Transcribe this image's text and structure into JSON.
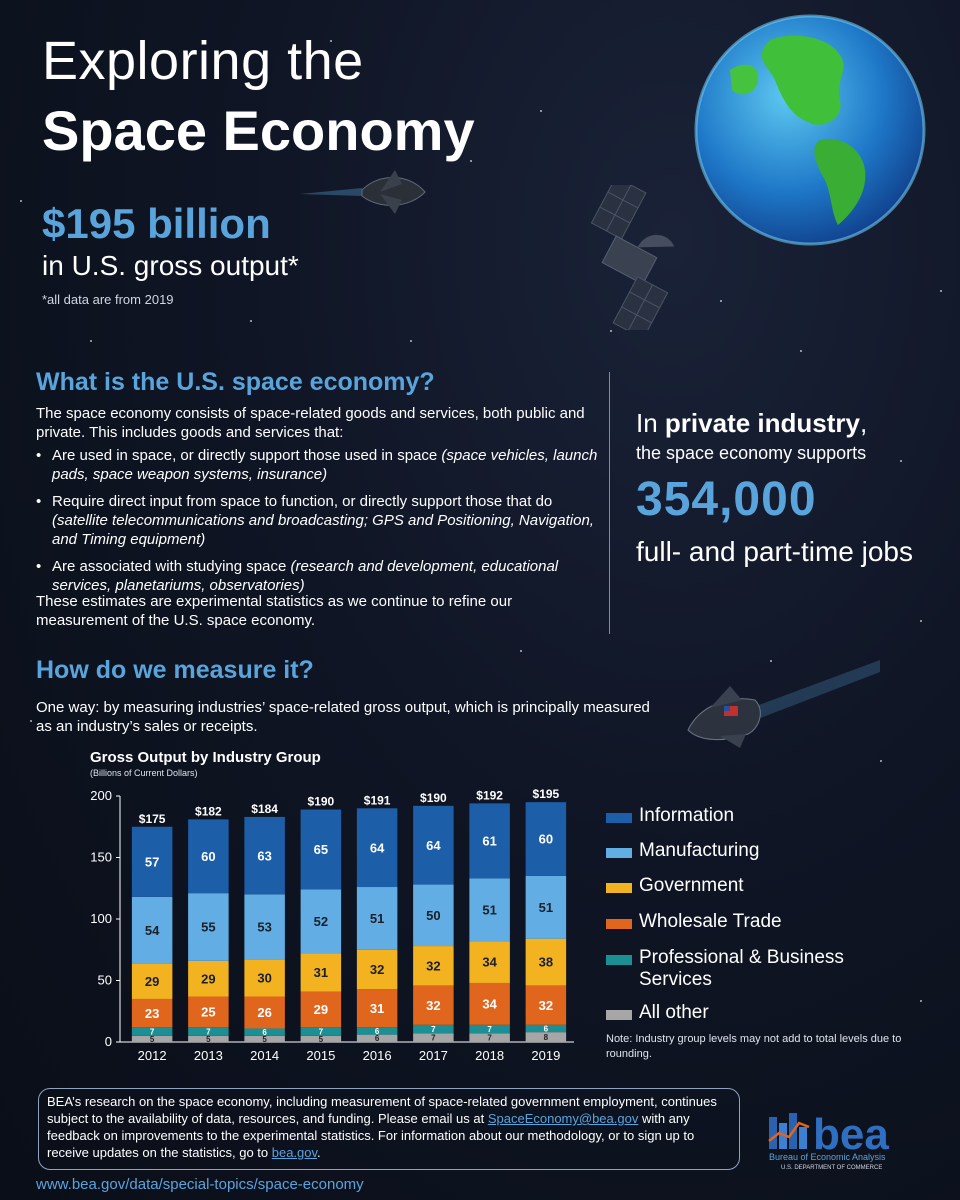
{
  "header": {
    "title_line1": "Exploring the",
    "title_line2": "Space Economy",
    "amount": "$195 billion",
    "amount_sub": "in U.S. gross output*",
    "note": "*all data are from 2019"
  },
  "what_section": {
    "heading": "What is the U.S. space economy?",
    "intro": "The space economy consists of space-related goods and services, both public and private. This includes goods and services that:",
    "bullets": [
      {
        "text": "Are used in space, or directly support those used in space",
        "examples": "(space vehicles, launch pads, space weapon systems, insurance)"
      },
      {
        "text": "Require direct input from space to function, or directly support those that do",
        "examples": "(satellite telecommunications and broadcasting; GPS and Positioning, Navigation, and Timing equipment)"
      },
      {
        "text": "Are associated with studying space",
        "examples": "(research and development, educational services, planetariums, observatories)"
      }
    ],
    "closing": "These estimates are experimental statistics as we continue to refine our measurement of the U.S. space economy."
  },
  "private_industry": {
    "line1_prefix": "In ",
    "line1_bold": "private industry",
    "line1_suffix": ",",
    "line2": "the space economy supports",
    "number": "354,000",
    "jobs": "full- and part-time jobs"
  },
  "measure_section": {
    "heading": "How do we measure it?",
    "text": "One way: by measuring industries’ space-related gross output, which is principally measured as an industry’s sales or receipts."
  },
  "chart_data": {
    "type": "bar",
    "stacked": true,
    "title": "Gross Output by Industry Group",
    "subtitle": "(Billions of Current Dollars)",
    "categories": [
      "2012",
      "2013",
      "2014",
      "2015",
      "2016",
      "2017",
      "2018",
      "2019"
    ],
    "ylim": [
      0,
      200
    ],
    "yticks": [
      0,
      50,
      100,
      150,
      200
    ],
    "totals": [
      "$175",
      "$182",
      "$184",
      "$190",
      "$191",
      "$190",
      "$192",
      "$195"
    ],
    "series": [
      {
        "name": "All other",
        "color": "#a6a6a6",
        "values": [
          5,
          5,
          5,
          5,
          6,
          7,
          7,
          8
        ]
      },
      {
        "name": "Professional & Business Services",
        "color": "#1b8f94",
        "values": [
          7,
          7,
          6,
          7,
          6,
          7,
          7,
          6
        ]
      },
      {
        "name": "Wholesale Trade",
        "color": "#e0661e",
        "values": [
          23,
          25,
          26,
          29,
          31,
          32,
          34,
          32
        ]
      },
      {
        "name": "Government",
        "color": "#f3b320",
        "values": [
          29,
          29,
          30,
          31,
          32,
          32,
          34,
          38
        ]
      },
      {
        "name": "Manufacturing",
        "color": "#62aee4",
        "values": [
          54,
          55,
          53,
          52,
          51,
          50,
          51,
          51
        ]
      },
      {
        "name": "Information",
        "color": "#1d5ea8",
        "values": [
          57,
          60,
          63,
          65,
          64,
          64,
          61,
          60
        ]
      }
    ],
    "legend": [
      "Information",
      "Manufacturing",
      "Government",
      "Wholesale Trade",
      "Professional & Business Services",
      "All other"
    ],
    "legend_position": "right",
    "grid": false,
    "note": "Note: Industry group levels may not add to total levels due to rounding."
  },
  "footer": {
    "text_before": "BEA’s research on the space economy, including measurement of space-related government employment, continues subject to the availability of data, resources, and funding. Please email us at ",
    "email": "SpaceEconomy@bea.gov",
    "text_middle": " with any feedback on improvements to the experimental statistics. For information about our methodology, or to sign up to receive updates on the statistics, go to ",
    "link": "bea.gov",
    "text_after": ".",
    "url": "www.bea.gov/data/special-topics/space-economy"
  },
  "logo": {
    "name": "bea",
    "subtitle": "Bureau of Economic Analysis",
    "dept": "U.S. DEPARTMENT OF COMMERCE"
  },
  "colors": {
    "accent": "#5aa4dc",
    "background": "#0f1524"
  }
}
